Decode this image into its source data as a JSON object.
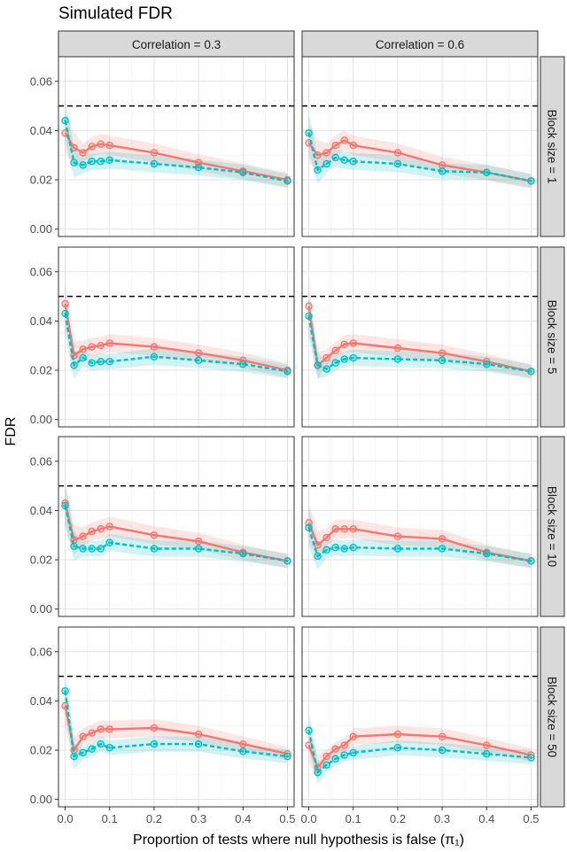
{
  "chart_data": {
    "type": "line",
    "title": "Simulated FDR",
    "xlabel": "Proportion of tests where null hypothesis is false (π₁)",
    "ylabel": "FDR",
    "xlim": [
      -0.015,
      0.515
    ],
    "ylim": [
      -0.003,
      0.07
    ],
    "x_ticks": [
      0.0,
      0.1,
      0.2,
      0.3,
      0.4,
      0.5
    ],
    "x_tick_labels": [
      "0.0",
      "0.1",
      "0.2",
      "0.3",
      "0.4",
      "0.5"
    ],
    "y_ticks": [
      0.0,
      0.02,
      0.04,
      0.06
    ],
    "y_tick_labels": [
      "0.00",
      "0.02",
      "0.04",
      "0.06"
    ],
    "reference_line": 0.05,
    "grid": true,
    "legend": "none",
    "x": [
      0.0,
      0.02,
      0.04,
      0.06,
      0.08,
      0.1,
      0.2,
      0.3,
      0.4,
      0.5
    ],
    "col_labels": [
      "Correlation =  0.3",
      "Correlation =  0.6"
    ],
    "row_labels": [
      "Block size = 1",
      "Block size = 5",
      "Block size = 10",
      "Block size = 50"
    ],
    "colors": {
      "series1": "#F8766D",
      "series2": "#00BFC4"
    },
    "panels": [
      {
        "row": 0,
        "col": 0,
        "series1": [
          0.039,
          0.033,
          0.031,
          0.0335,
          0.0345,
          0.034,
          0.031,
          0.027,
          0.0235,
          0.02
        ],
        "series2": [
          0.044,
          0.027,
          0.026,
          0.0275,
          0.0275,
          0.028,
          0.0265,
          0.025,
          0.023,
          0.0195
        ]
      },
      {
        "row": 0,
        "col": 1,
        "series1": [
          0.035,
          0.03,
          0.031,
          0.034,
          0.036,
          0.034,
          0.031,
          0.026,
          0.023,
          0.0195
        ],
        "series2": [
          0.039,
          0.024,
          0.0265,
          0.029,
          0.028,
          0.0275,
          0.0265,
          0.0235,
          0.023,
          0.0195
        ]
      },
      {
        "row": 1,
        "col": 0,
        "series1": [
          0.047,
          0.026,
          0.0285,
          0.0295,
          0.03,
          0.031,
          0.0295,
          0.027,
          0.024,
          0.02
        ],
        "series2": [
          0.043,
          0.022,
          0.025,
          0.023,
          0.0235,
          0.0235,
          0.0255,
          0.024,
          0.0225,
          0.0195
        ]
      },
      {
        "row": 1,
        "col": 1,
        "series1": [
          0.046,
          0.022,
          0.025,
          0.028,
          0.0305,
          0.031,
          0.029,
          0.027,
          0.0235,
          0.0195
        ],
        "series2": [
          0.042,
          0.022,
          0.0205,
          0.023,
          0.0245,
          0.025,
          0.0245,
          0.024,
          0.0225,
          0.0195
        ]
      },
      {
        "row": 2,
        "col": 0,
        "series1": [
          0.043,
          0.028,
          0.0295,
          0.0315,
          0.0325,
          0.0335,
          0.03,
          0.0275,
          0.023,
          0.0195
        ],
        "series2": [
          0.042,
          0.0255,
          0.0245,
          0.0245,
          0.0245,
          0.027,
          0.0245,
          0.0245,
          0.0225,
          0.0195
        ]
      },
      {
        "row": 2,
        "col": 1,
        "series1": [
          0.035,
          0.026,
          0.029,
          0.0325,
          0.0325,
          0.0325,
          0.0295,
          0.0285,
          0.023,
          0.0195
        ],
        "series2": [
          0.033,
          0.0215,
          0.024,
          0.025,
          0.0245,
          0.025,
          0.0245,
          0.0245,
          0.0225,
          0.0195
        ]
      },
      {
        "row": 3,
        "col": 0,
        "series1": [
          0.038,
          0.02,
          0.0255,
          0.027,
          0.0285,
          0.0285,
          0.029,
          0.0265,
          0.0225,
          0.0185
        ],
        "series2": [
          0.044,
          0.0175,
          0.019,
          0.0205,
          0.0225,
          0.021,
          0.0225,
          0.0225,
          0.0195,
          0.0175
        ]
      },
      {
        "row": 3,
        "col": 1,
        "series1": [
          0.022,
          0.013,
          0.0175,
          0.0205,
          0.022,
          0.0255,
          0.0265,
          0.0255,
          0.022,
          0.018
        ],
        "series2": [
          0.028,
          0.011,
          0.014,
          0.0165,
          0.018,
          0.019,
          0.021,
          0.02,
          0.0185,
          0.017
        ]
      }
    ]
  }
}
